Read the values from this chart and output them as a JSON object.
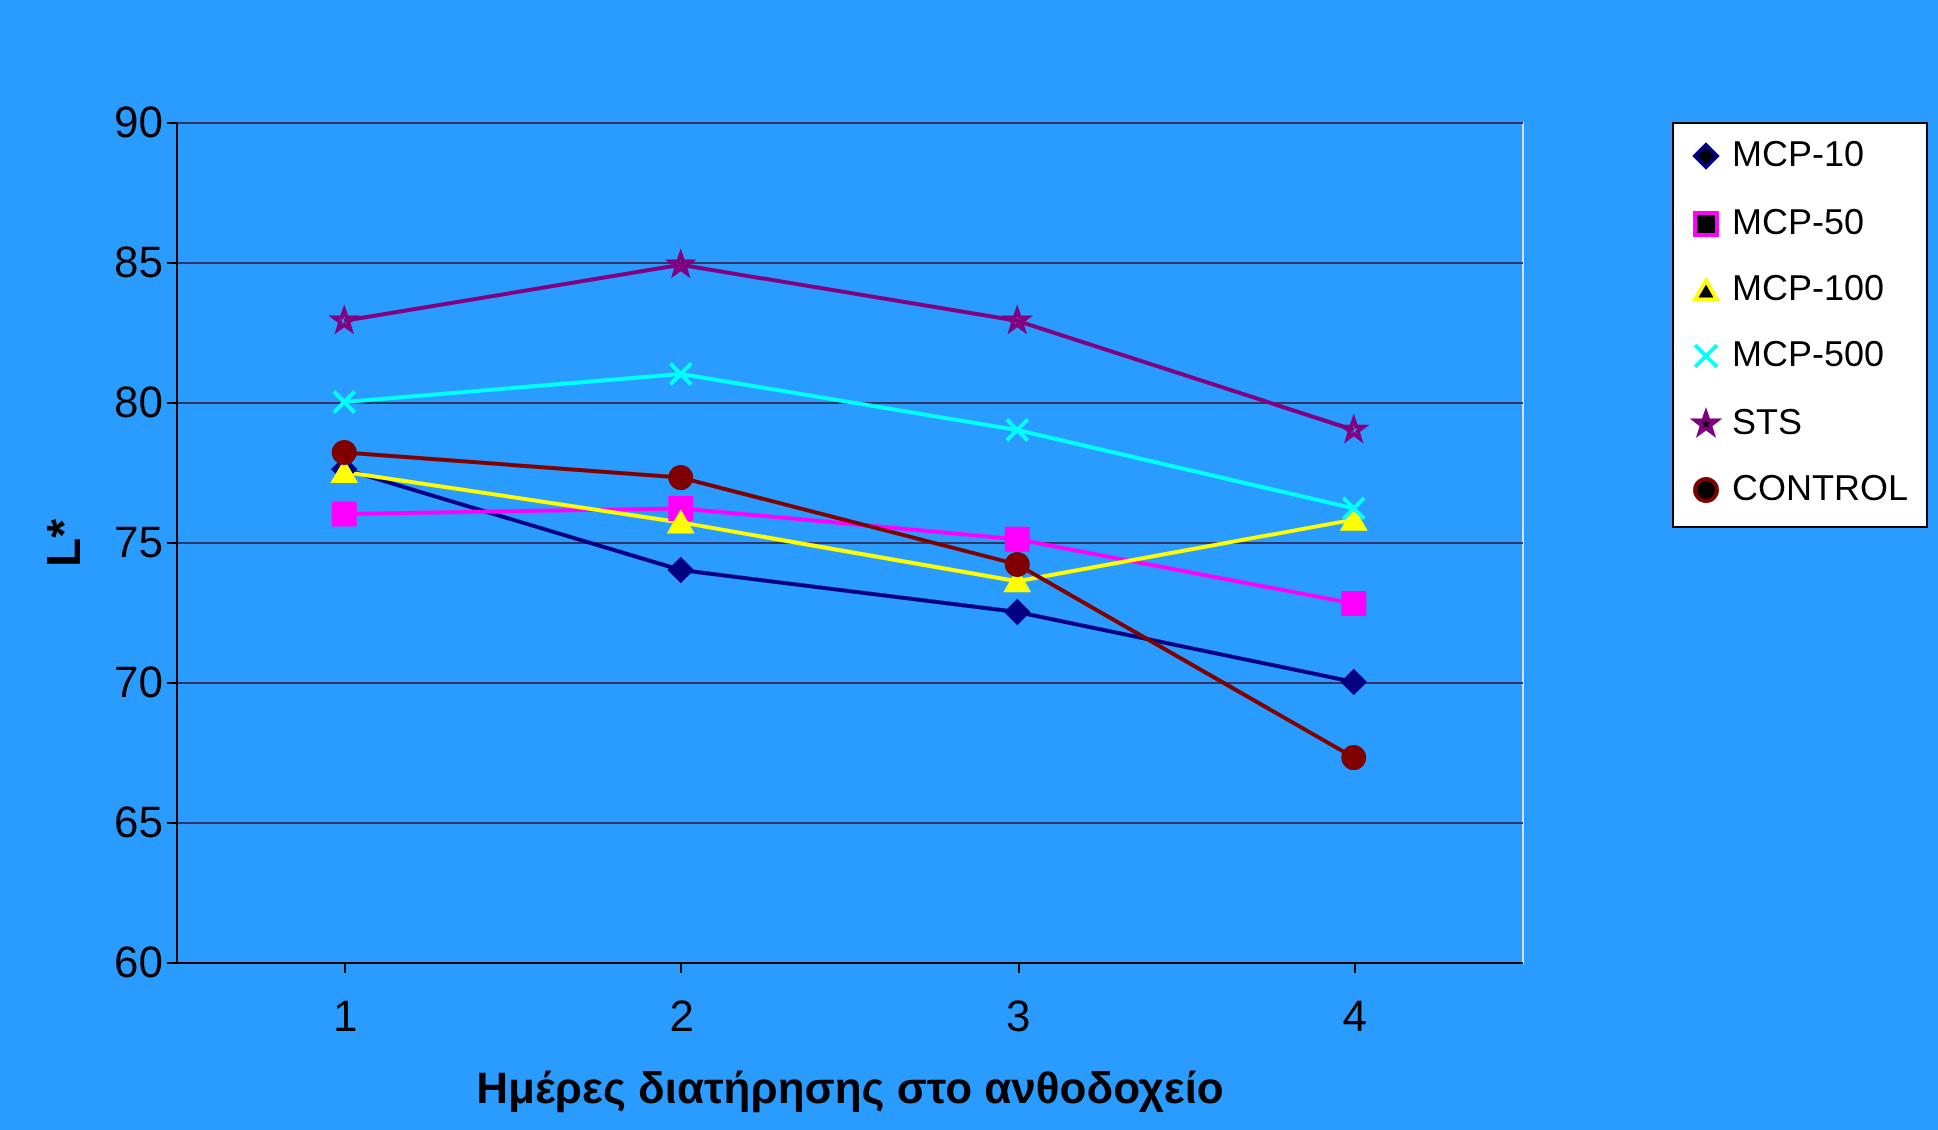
{
  "chart_data": {
    "type": "line",
    "xlabel": "Ημέρες διατήρησης στο ανθοδοχείο",
    "ylabel": "L*",
    "categories": [
      "1",
      "2",
      "3",
      "4"
    ],
    "ylim": [
      60,
      90
    ],
    "yticks": [
      60,
      65,
      70,
      75,
      80,
      85,
      90
    ],
    "grid": "y",
    "legend": "right",
    "series": [
      {
        "name": "MCP-10",
        "color": "#000080",
        "marker": "diamond",
        "values": [
          77.6,
          74.0,
          72.5,
          70.0
        ]
      },
      {
        "name": "MCP-50",
        "color": "#ff00ff",
        "marker": "square",
        "values": [
          76.0,
          76.2,
          75.1,
          72.8
        ]
      },
      {
        "name": "MCP-100",
        "color": "#ffff00",
        "marker": "triangle",
        "values": [
          77.5,
          75.7,
          73.6,
          75.8
        ]
      },
      {
        "name": "MCP-500",
        "color": "#00ffff",
        "marker": "cross",
        "values": [
          80.0,
          81.0,
          79.0,
          76.2
        ]
      },
      {
        "name": "STS",
        "color": "#800080",
        "marker": "star",
        "values": [
          82.9,
          84.9,
          82.9,
          79.0
        ]
      },
      {
        "name": "CONTROL",
        "color": "#800000",
        "marker": "circle",
        "values": [
          78.2,
          77.3,
          74.2,
          67.3
        ]
      }
    ]
  }
}
